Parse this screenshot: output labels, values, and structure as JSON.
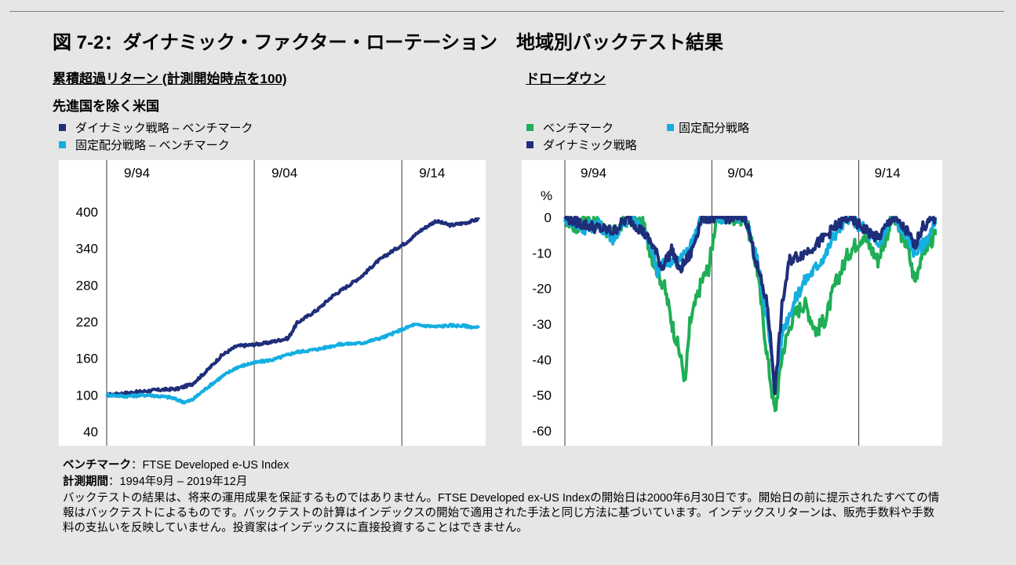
{
  "title": "図 7-2：ダイナミック・ファクター・ローテーション　地域別バックテスト結果",
  "left_subtitle": "累積超過リターン (計測開始時点を100)",
  "right_subtitle": "ドローダウン",
  "region_label": "先進国を除く米国",
  "colors": {
    "dynamic": "#1f2e7a",
    "fixed": "#14aee0",
    "benchmark": "#1fae55"
  },
  "left_legend": [
    {
      "label": "ダイナミック戦略 – ベンチマーク",
      "color": "#1f2e7a"
    },
    {
      "label": "固定配分戦略 – ベンチマーク",
      "color": "#14aee0"
    }
  ],
  "right_legend": [
    {
      "label": "ベンチマーク",
      "color": "#1fae55"
    },
    {
      "label": "固定配分戦略",
      "color": "#14aee0"
    },
    {
      "label": "ダイナミック戦略",
      "color": "#1f2e7a"
    }
  ],
  "chart_data": [
    {
      "type": "line",
      "x_period": [
        "1994-09",
        "2019-12"
      ],
      "x_ticks": [
        "9/94",
        "9/04",
        "9/14"
      ],
      "y_ticks": [
        "400",
        "340",
        "280",
        "220",
        "160",
        "100",
        "40"
      ],
      "ylim": [
        40,
        400
      ],
      "series": [
        {
          "name": "ダイナミック戦略 – ベンチマーク",
          "color": "#1f2e7a",
          "points": [
            [
              1994.7,
              100
            ],
            [
              1996,
              103
            ],
            [
              1998,
              108
            ],
            [
              1999.5,
              110
            ],
            [
              2000.5,
              118
            ],
            [
              2001.5,
              140
            ],
            [
              2002.5,
              165
            ],
            [
              2003.5,
              180
            ],
            [
              2004.5,
              182
            ],
            [
              2005.5,
              185
            ],
            [
              2007,
              193
            ],
            [
              2007.6,
              218
            ],
            [
              2009,
              240
            ],
            [
              2010,
              262
            ],
            [
              2011,
              278
            ],
            [
              2012,
              295
            ],
            [
              2013,
              318
            ],
            [
              2014,
              335
            ],
            [
              2015,
              350
            ],
            [
              2016,
              370
            ],
            [
              2017,
              385
            ],
            [
              2018,
              378
            ],
            [
              2019,
              382
            ],
            [
              2019.9,
              388
            ]
          ]
        },
        {
          "name": "固定配分戦略 – ベンチマーク",
          "color": "#14aee0",
          "points": [
            [
              1994.7,
              100
            ],
            [
              1996,
              98
            ],
            [
              1997.5,
              100
            ],
            [
              1999,
              96
            ],
            [
              2000,
              88
            ],
            [
              2000.5,
              92
            ],
            [
              2001.5,
              112
            ],
            [
              2002.5,
              130
            ],
            [
              2003.5,
              145
            ],
            [
              2004.5,
              152
            ],
            [
              2006,
              158
            ],
            [
              2007.5,
              170
            ],
            [
              2009,
              175
            ],
            [
              2010.5,
              183
            ],
            [
              2012,
              185
            ],
            [
              2013.5,
              195
            ],
            [
              2014.5,
              205
            ],
            [
              2015.5,
              215
            ],
            [
              2017,
              212
            ],
            [
              2018,
              214
            ],
            [
              2019,
              213
            ],
            [
              2019.9,
              210
            ]
          ]
        }
      ]
    },
    {
      "type": "line",
      "x_period": [
        "1994-09",
        "2019-12"
      ],
      "x_ticks": [
        "9/94",
        "9/04",
        "9/14"
      ],
      "y_unit": "%",
      "y_ticks": [
        "0",
        "-10",
        "-20",
        "-30",
        "-40",
        "-50",
        "-60"
      ],
      "ylim": [
        -60,
        0
      ],
      "series": [
        {
          "name": "ベンチマーク",
          "color": "#1fae55",
          "points": [
            [
              1994.7,
              0
            ],
            [
              1995.5,
              -3
            ],
            [
              1996,
              0
            ],
            [
              1997,
              -2
            ],
            [
              1998,
              -5
            ],
            [
              1999,
              0
            ],
            [
              2000,
              -2
            ],
            [
              2000.7,
              -12
            ],
            [
              2001.5,
              -20
            ],
            [
              2002,
              -30
            ],
            [
              2002.5,
              -38
            ],
            [
              2002.9,
              -46
            ],
            [
              2003.2,
              -30
            ],
            [
              2004,
              -18
            ],
            [
              2004.5,
              -14
            ],
            [
              2005,
              0
            ],
            [
              2007,
              0
            ],
            [
              2007.8,
              -15
            ],
            [
              2008.5,
              -40
            ],
            [
              2009,
              -55
            ],
            [
              2009.5,
              -38
            ],
            [
              2010.2,
              -28
            ],
            [
              2011,
              -24
            ],
            [
              2011.8,
              -32
            ],
            [
              2012.5,
              -28
            ],
            [
              2013,
              -20
            ],
            [
              2014,
              -10
            ],
            [
              2015,
              -5
            ],
            [
              2016,
              -12
            ],
            [
              2017,
              0
            ],
            [
              2018,
              -8
            ],
            [
              2018.5,
              -18
            ],
            [
              2019,
              -10
            ],
            [
              2019.9,
              -5
            ]
          ]
        },
        {
          "name": "固定配分戦略",
          "color": "#14aee0",
          "points": [
            [
              1994.7,
              0
            ],
            [
              1996,
              -3
            ],
            [
              1997,
              -2
            ],
            [
              1998,
              -6
            ],
            [
              1999,
              0
            ],
            [
              2000,
              -3
            ],
            [
              2000.7,
              -10
            ],
            [
              2001,
              -16
            ],
            [
              2001.5,
              -12
            ],
            [
              2002.5,
              -12
            ],
            [
              2003,
              -10
            ],
            [
              2004,
              0
            ],
            [
              2007,
              0
            ],
            [
              2007.8,
              -12
            ],
            [
              2008.5,
              -30
            ],
            [
              2009,
              -48
            ],
            [
              2009.5,
              -32
            ],
            [
              2010.5,
              -22
            ],
            [
              2011,
              -18
            ],
            [
              2011.8,
              -14
            ],
            [
              2012.5,
              -10
            ],
            [
              2013,
              -5
            ],
            [
              2014,
              0
            ],
            [
              2015,
              -3
            ],
            [
              2016,
              -8
            ],
            [
              2017,
              0
            ],
            [
              2018,
              -5
            ],
            [
              2018.5,
              -10
            ],
            [
              2019,
              -8
            ],
            [
              2019.9,
              -2
            ]
          ]
        },
        {
          "name": "ダイナミック戦略",
          "color": "#1f2e7a",
          "points": [
            [
              1994.7,
              0
            ],
            [
              1996,
              -2
            ],
            [
              1997,
              -3
            ],
            [
              1998,
              -4
            ],
            [
              1999,
              0
            ],
            [
              2000,
              -4
            ],
            [
              2000.7,
              -8
            ],
            [
              2001.3,
              -14
            ],
            [
              2002,
              -9
            ],
            [
              2002.5,
              -15
            ],
            [
              2003.3,
              -10
            ],
            [
              2004,
              0
            ],
            [
              2007,
              0
            ],
            [
              2007.8,
              -14
            ],
            [
              2008.5,
              -25
            ],
            [
              2009,
              -49
            ],
            [
              2009.5,
              -24
            ],
            [
              2010,
              -12
            ],
            [
              2011,
              -10
            ],
            [
              2012,
              -7
            ],
            [
              2013,
              -3
            ],
            [
              2014,
              0
            ],
            [
              2015,
              -3
            ],
            [
              2016,
              -6
            ],
            [
              2017,
              0
            ],
            [
              2018,
              -4
            ],
            [
              2018.5,
              -8
            ],
            [
              2019,
              -3
            ],
            [
              2019.9,
              0
            ]
          ]
        }
      ]
    }
  ],
  "footer": {
    "benchmark_label": "ベンチマーク",
    "benchmark_value": "：FTSE Developed e-US Index",
    "period_label": "計測期間",
    "period_value": "：1994年9月 – 2019年12月",
    "note": "バックテストの結果は、将来の運用成果を保証するものではありません。FTSE Developed ex-US Indexの開始日は2000年6月30日です。開始日の前に提示されたすべての情報はバックテストによるものです。バックテストの計算はインデックスの開始で適用された手法と同じ方法に基づいています。インデックスリターンは、販売手数料や手数料の支払いを反映していません。投資家はインデックスに直接投資することはできません。"
  }
}
